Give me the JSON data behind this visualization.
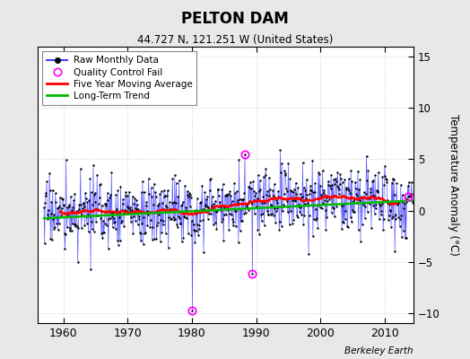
{
  "title": "PELTON DAM",
  "subtitle": "44.727 N, 121.251 W (United States)",
  "ylabel": "Temperature Anomaly (°C)",
  "credit": "Berkeley Earth",
  "start_year": 1957,
  "end_year": 2014,
  "ylim": [
    -11,
    16
  ],
  "yticks": [
    -10,
    -5,
    0,
    5,
    10,
    15
  ],
  "background_color": "#e8e8e8",
  "plot_bg_color": "#ffffff",
  "raw_color": "#4444ff",
  "raw_dot_color": "#000000",
  "qc_color": "#ff00ff",
  "moving_avg_color": "#ff0000",
  "trend_color": "#00bb00",
  "seed": 17
}
